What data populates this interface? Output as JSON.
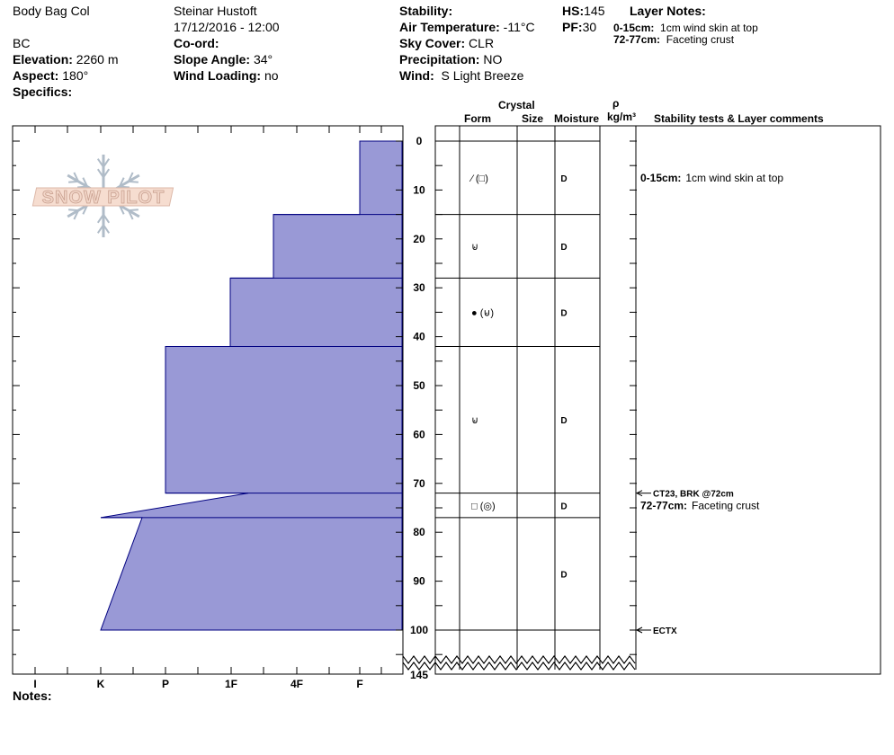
{
  "header": {
    "location_name": "Body Bag Col",
    "observer": "Steinar Hustoft",
    "datetime": "17/12/2016 - 12:00",
    "region": "BC",
    "elevation_label": "Elevation:",
    "elevation_value": "2260 m",
    "aspect_label": "Aspect:",
    "aspect_value": "180°",
    "specifics_label": "Specifics:",
    "coord_label": "Co-ord:",
    "slope_label": "Slope Angle:",
    "slope_value": "34°",
    "wind_loading_label": "Wind Loading:",
    "wind_loading_value": "no",
    "stability_label": "Stability:",
    "air_temp_label": "Air Temperature:",
    "air_temp_value": "-11°C",
    "sky_label": "Sky Cover:",
    "sky_value": "CLR",
    "precip_label": "Precipitation:",
    "precip_value": "NO",
    "wind_label": "Wind:",
    "wind_value": "S Light Breeze",
    "hs_label": "HS:",
    "hs_value": "145",
    "pf_label": "PF:",
    "pf_value": "30",
    "layer_notes_title": "Layer Notes:",
    "layer_notes": [
      {
        "range": "0-15cm:",
        "text": "1cm wind skin at top"
      },
      {
        "range": "72-77cm:",
        "text": "Faceting crust"
      }
    ]
  },
  "logo_text": "SNOW PILOT",
  "notes_label": "Notes:",
  "columns": {
    "crystal": "Crystal",
    "form": "Form",
    "size": "Size",
    "moisture": "Moisture",
    "rho": "ρ",
    "density_unit": "kg/m³",
    "comments": "Stability tests & Layer comments"
  },
  "hardness_labels": [
    "I",
    "K",
    "P",
    "1F",
    "4F",
    "F"
  ],
  "depth_labels": [
    "0",
    "10",
    "20",
    "30",
    "40",
    "50",
    "60",
    "70",
    "80",
    "90",
    "100",
    "145"
  ],
  "layers": [
    {
      "top": 0,
      "bottom": 15,
      "hardness": 0.65,
      "form_symbols": "⁄ (□)",
      "moisture": "D"
    },
    {
      "top": 15,
      "bottom": 28,
      "hardness": 2.0,
      "form_symbols": "⊌",
      "moisture": "D"
    },
    {
      "top": 28,
      "bottom": 42,
      "hardness": 2.65,
      "form_symbols": "● (⊌)",
      "moisture": "D"
    },
    {
      "top": 42,
      "bottom": 72,
      "hardness": 3.65,
      "form_symbols": "⊌",
      "moisture": "D"
    },
    {
      "top": 72,
      "bottom": 77,
      "hardness_top": 2.4,
      "hardness_bottom": 4.65,
      "form_symbols": "□ (◎)",
      "moisture": "D"
    },
    {
      "top": 77,
      "bottom": 100,
      "hardness_top": 4.0,
      "hardness_bottom": 4.65,
      "form_symbols": "",
      "moisture": "D"
    }
  ],
  "stability_results": [
    {
      "depth": 72,
      "text": "CT23, BRK @72cm"
    },
    {
      "depth": 100,
      "text": "ECTX"
    }
  ],
  "layer_comments": [
    {
      "depth": 7.5,
      "range": "0-15cm:",
      "text": "1cm wind skin at top"
    },
    {
      "depth": 74.5,
      "range": "72-77cm:",
      "text": "Faceting crust"
    }
  ],
  "colors": {
    "profile_fill": "#9999d6",
    "profile_stroke": "#000080"
  }
}
